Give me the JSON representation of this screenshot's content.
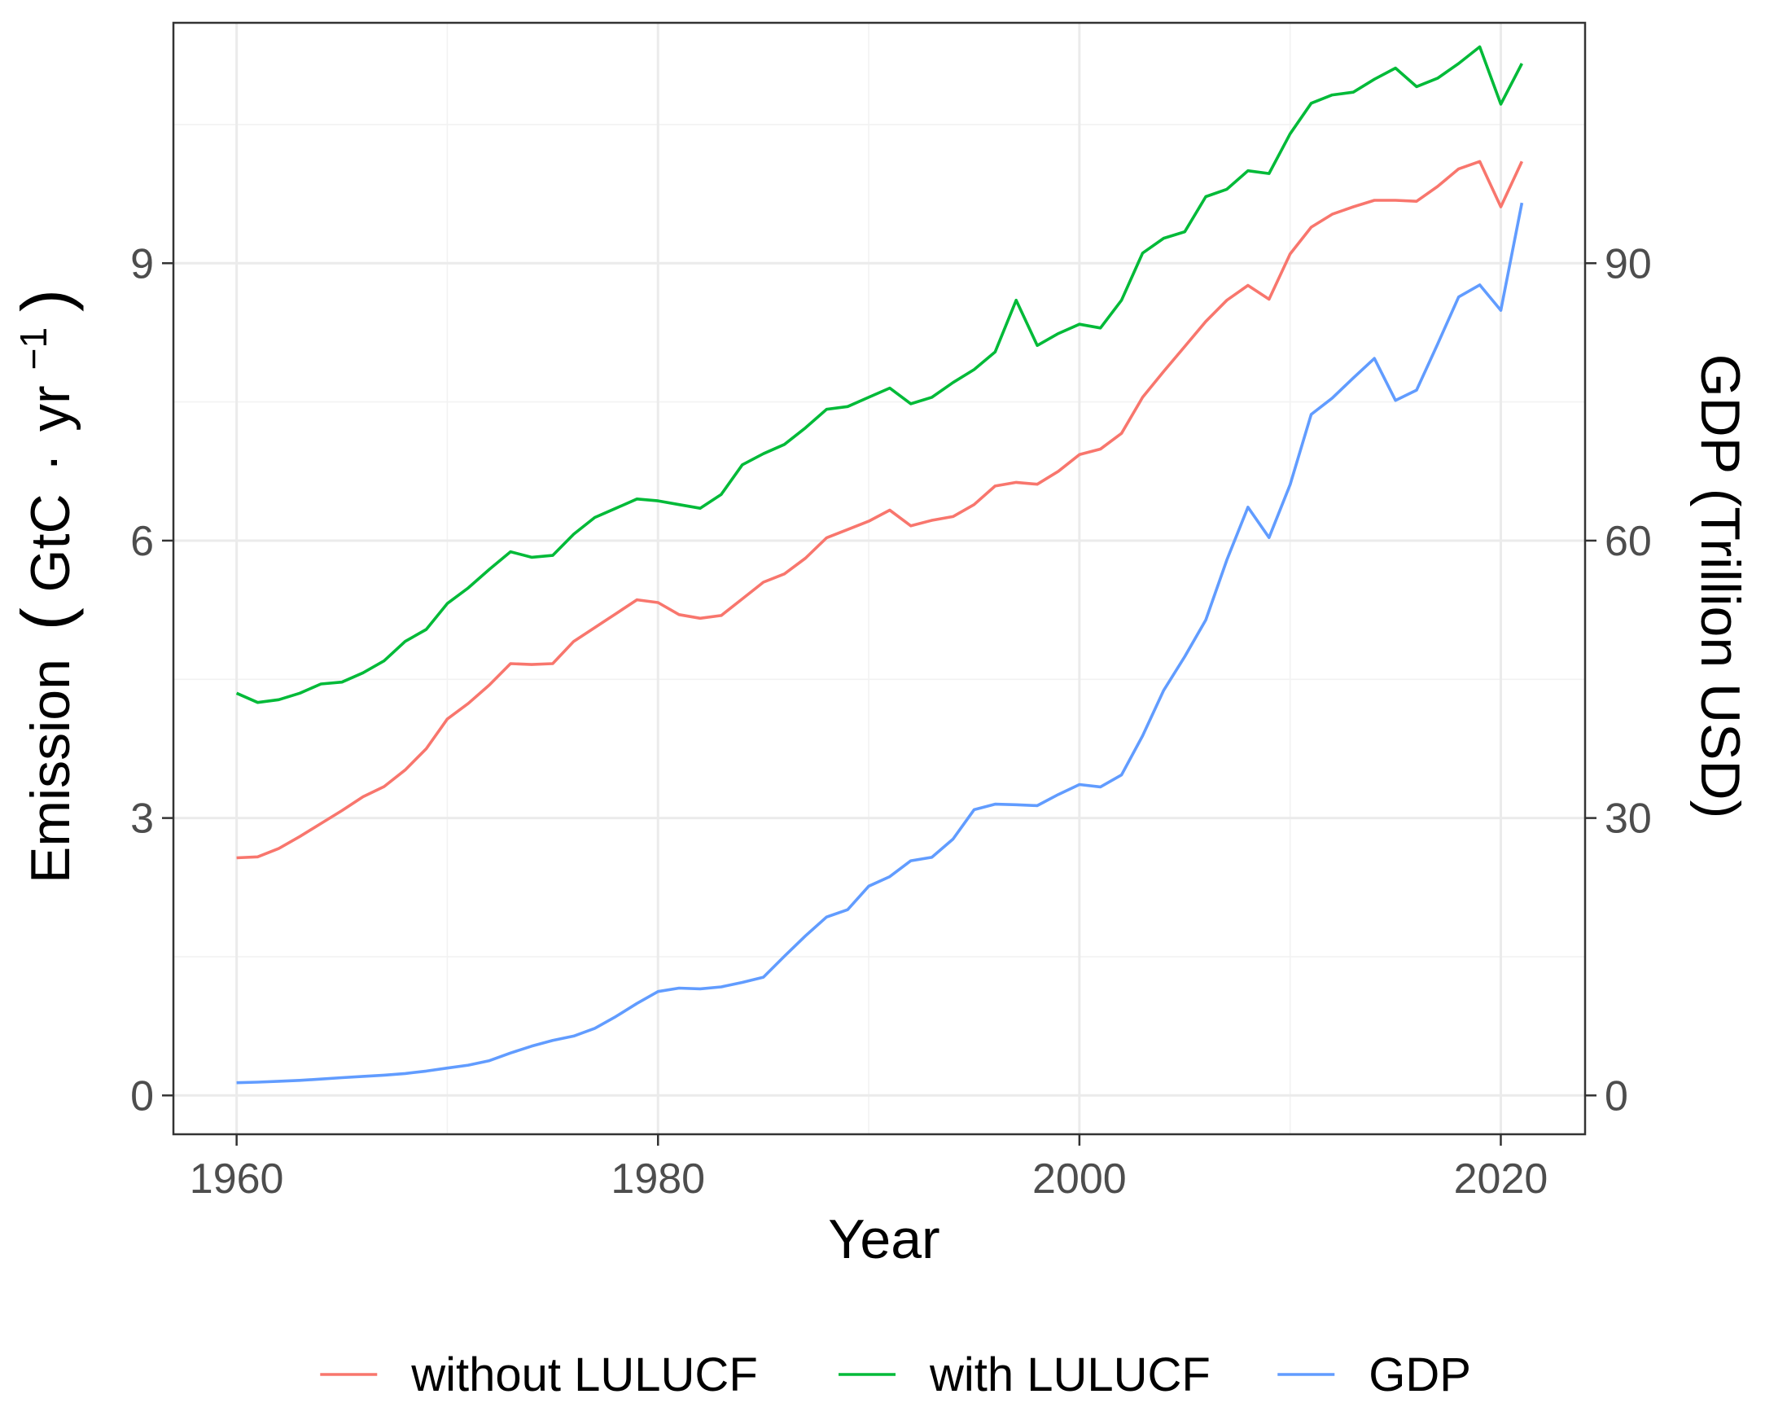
{
  "chart_data": {
    "type": "line",
    "x_title": "Year",
    "y_left_title": "Emission",
    "y_left_unit": {
      "open": "(",
      "base": "GtC",
      "dot": "·",
      "unit": "yr",
      "exponent": "−1",
      "close": ")"
    },
    "y_right_title": "GDP (Trillion USD)",
    "xlim": [
      1957,
      2024
    ],
    "ylim_left": [
      -0.42,
      11.6
    ],
    "ylim_right": [
      -4.2,
      116
    ],
    "x_ticks": [
      1960,
      1980,
      2000,
      2020
    ],
    "x_tick_labels": [
      "1960",
      "1980",
      "2000",
      "2020"
    ],
    "y_left_ticks": [
      0,
      3,
      6,
      9
    ],
    "y_left_tick_labels": [
      "0",
      "3",
      "6",
      "9"
    ],
    "y_right_ticks": [
      0,
      30,
      60,
      90
    ],
    "y_right_tick_labels": [
      "0",
      "30",
      "60",
      "90"
    ],
    "grid": true,
    "legend_position": "bottom",
    "x": [
      1960,
      1961,
      1962,
      1963,
      1964,
      1965,
      1966,
      1967,
      1968,
      1969,
      1970,
      1971,
      1972,
      1973,
      1974,
      1975,
      1976,
      1977,
      1978,
      1979,
      1980,
      1981,
      1982,
      1983,
      1984,
      1985,
      1986,
      1987,
      1988,
      1989,
      1990,
      1991,
      1992,
      1993,
      1994,
      1995,
      1996,
      1997,
      1998,
      1999,
      2000,
      2001,
      2002,
      2003,
      2004,
      2005,
      2006,
      2007,
      2008,
      2009,
      2010,
      2011,
      2012,
      2013,
      2014,
      2015,
      2016,
      2017,
      2018,
      2019,
      2020,
      2021
    ],
    "series": [
      {
        "name": "without LULUCF",
        "axis": "left",
        "color": "#f8766d",
        "values": [
          2.57,
          2.58,
          2.67,
          2.8,
          2.94,
          3.08,
          3.23,
          3.34,
          3.52,
          3.75,
          4.07,
          4.24,
          4.44,
          4.67,
          4.66,
          4.67,
          4.91,
          5.06,
          5.21,
          5.36,
          5.33,
          5.2,
          5.16,
          5.19,
          5.37,
          5.55,
          5.64,
          5.81,
          6.03,
          6.12,
          6.21,
          6.33,
          6.16,
          6.22,
          6.26,
          6.39,
          6.59,
          6.63,
          6.61,
          6.75,
          6.93,
          6.99,
          7.16,
          7.55,
          7.83,
          8.1,
          8.37,
          8.6,
          8.76,
          8.61,
          9.1,
          9.39,
          9.53,
          9.61,
          9.68,
          9.68,
          9.67,
          9.83,
          10.02,
          10.1,
          9.61,
          10.1
        ]
      },
      {
        "name": "with LULUCF",
        "axis": "left",
        "color": "#00ba38",
        "values": [
          4.35,
          4.25,
          4.28,
          4.35,
          4.45,
          4.47,
          4.57,
          4.7,
          4.91,
          5.04,
          5.32,
          5.49,
          5.69,
          5.88,
          5.82,
          5.84,
          6.07,
          6.25,
          6.35,
          6.45,
          6.43,
          6.39,
          6.35,
          6.5,
          6.82,
          6.94,
          7.04,
          7.22,
          7.42,
          7.45,
          7.55,
          7.65,
          7.48,
          7.55,
          7.71,
          7.85,
          8.04,
          8.6,
          8.11,
          8.24,
          8.34,
          8.3,
          8.6,
          9.11,
          9.27,
          9.34,
          9.72,
          9.8,
          10.0,
          9.97,
          10.4,
          10.73,
          10.82,
          10.85,
          10.99,
          11.11,
          10.91,
          11.0,
          11.16,
          11.34,
          10.72,
          11.16
        ]
      },
      {
        "name": "GDP",
        "axis": "right",
        "color": "#619cff",
        "values": [
          1.37,
          1.44,
          1.53,
          1.63,
          1.77,
          1.92,
          2.06,
          2.19,
          2.37,
          2.63,
          2.96,
          3.28,
          3.76,
          4.59,
          5.33,
          5.94,
          6.42,
          7.26,
          8.53,
          9.95,
          11.24,
          11.61,
          11.53,
          11.74,
          12.22,
          12.79,
          15.05,
          17.26,
          19.29,
          20.09,
          22.63,
          23.66,
          25.38,
          25.76,
          27.72,
          30.9,
          31.5,
          31.44,
          31.34,
          32.55,
          33.62,
          33.37,
          34.66,
          38.9,
          43.81,
          47.46,
          51.42,
          57.92,
          63.61,
          60.33,
          66.05,
          73.65,
          75.41,
          77.59,
          79.7,
          75.17,
          76.28,
          81.24,
          86.35,
          87.65,
          84.91,
          96.53
        ]
      }
    ]
  }
}
